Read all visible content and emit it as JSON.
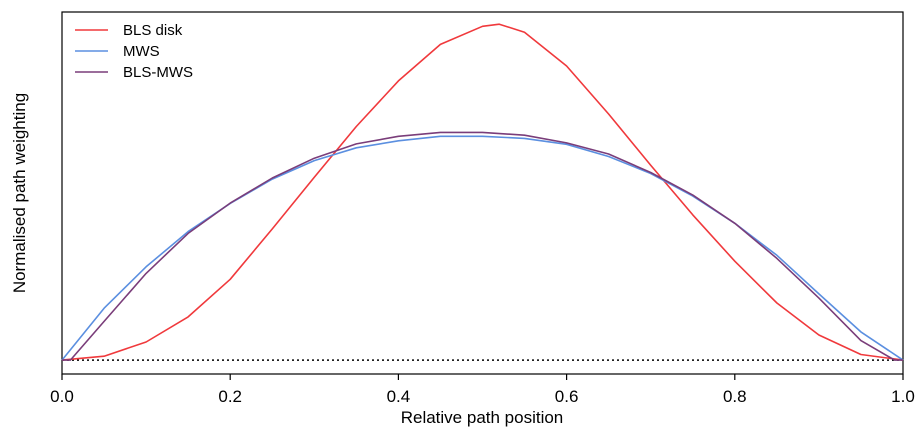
{
  "chart_data": {
    "type": "line",
    "xlabel": "Relative path position",
    "ylabel": "Normalised path weighting",
    "xlim": [
      0.0,
      1.0
    ],
    "ylim": [
      -0.04,
      1.0
    ],
    "x_ticks": [
      "0.0",
      "0.2",
      "0.4",
      "0.6",
      "0.8",
      "1.0"
    ],
    "y_ticks_shown": false,
    "grid": false,
    "legend_position": "top-left",
    "baseline": {
      "y": 0,
      "style": "dotted",
      "color": "#000000"
    },
    "series": [
      {
        "name": "BLS disk",
        "color": "#f0393c",
        "x": [
          0.0,
          0.05,
          0.1,
          0.15,
          0.2,
          0.25,
          0.3,
          0.35,
          0.4,
          0.45,
          0.5,
          0.52,
          0.55,
          0.6,
          0.65,
          0.7,
          0.75,
          0.8,
          0.85,
          0.9,
          0.95,
          1.0
        ],
        "y": [
          0.0,
          0.011,
          0.052,
          0.124,
          0.232,
          0.377,
          0.525,
          0.671,
          0.802,
          0.907,
          0.959,
          0.965,
          0.942,
          0.845,
          0.707,
          0.56,
          0.417,
          0.284,
          0.164,
          0.072,
          0.016,
          0.0
        ]
      },
      {
        "name": "MWS",
        "color": "#5b8fe0",
        "x": [
          0.0,
          0.05,
          0.1,
          0.15,
          0.2,
          0.25,
          0.3,
          0.35,
          0.4,
          0.45,
          0.5,
          0.55,
          0.6,
          0.65,
          0.7,
          0.75,
          0.8,
          0.85,
          0.9,
          0.95,
          1.0
        ],
        "y": [
          0.0,
          0.149,
          0.268,
          0.369,
          0.45,
          0.52,
          0.573,
          0.61,
          0.63,
          0.643,
          0.643,
          0.637,
          0.62,
          0.585,
          0.536,
          0.471,
          0.393,
          0.301,
          0.19,
          0.081,
          0.0
        ]
      },
      {
        "name": "BLS-MWS",
        "color": "#7a3d7a",
        "x": [
          0.0,
          0.01,
          0.05,
          0.1,
          0.15,
          0.2,
          0.25,
          0.3,
          0.35,
          0.4,
          0.45,
          0.5,
          0.55,
          0.6,
          0.65,
          0.7,
          0.75,
          0.8,
          0.85,
          0.9,
          0.95,
          0.99,
          1.0
        ],
        "y": [
          0.0,
          0.0,
          0.111,
          0.249,
          0.364,
          0.451,
          0.523,
          0.58,
          0.621,
          0.643,
          0.654,
          0.654,
          0.646,
          0.624,
          0.592,
          0.539,
          0.474,
          0.393,
          0.292,
          0.178,
          0.056,
          0.0,
          0.0
        ]
      }
    ]
  }
}
